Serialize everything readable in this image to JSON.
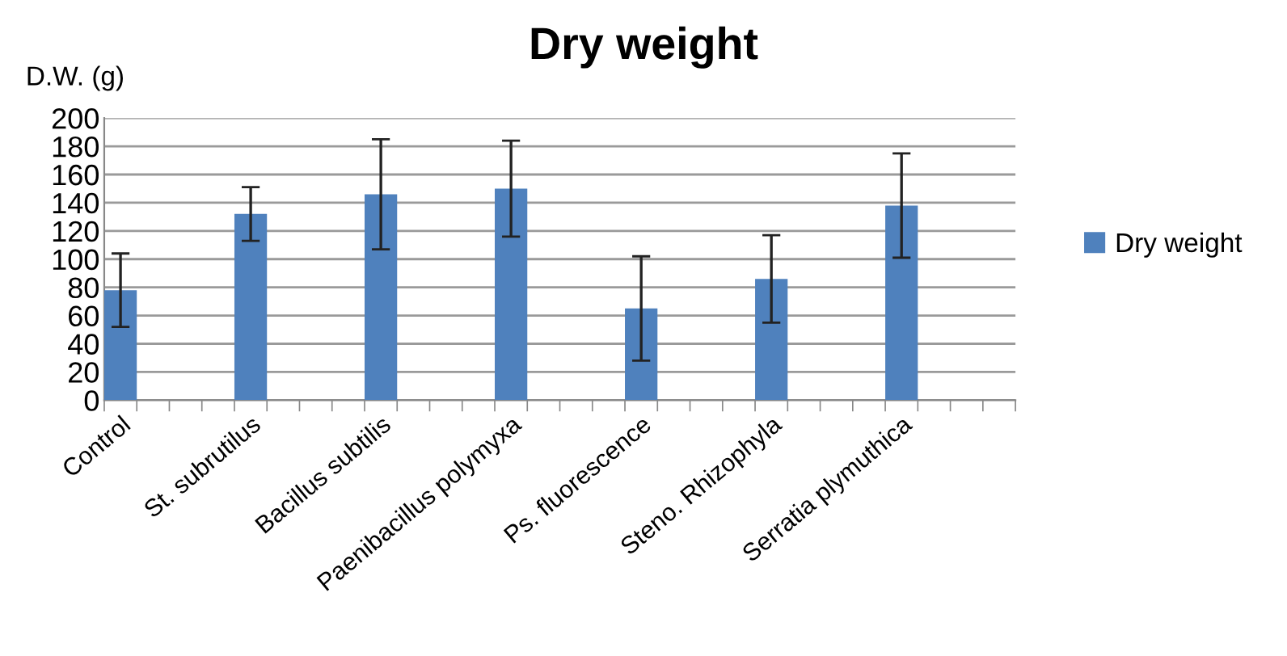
{
  "chart_data": {
    "type": "bar",
    "title": "Dry weight",
    "ylabel": "D.W. (g)",
    "categories": [
      "Control",
      null,
      null,
      null,
      "St. subrutilus",
      null,
      null,
      null,
      "Bacillus subtilis",
      null,
      null,
      null,
      "Paenibacillus polymyxa",
      null,
      null,
      null,
      "Ps. fluorescence",
      null,
      null,
      null,
      "Steno. Rhizophyla",
      null,
      null,
      null,
      "Serratia plymuthica",
      null,
      null,
      null
    ],
    "series": [
      {
        "name": "Dry weight",
        "color": "#4f81bd",
        "values": [
          78,
          null,
          null,
          null,
          132,
          null,
          null,
          null,
          146,
          null,
          null,
          null,
          150,
          null,
          null,
          null,
          65,
          null,
          null,
          null,
          86,
          null,
          null,
          null,
          138,
          null,
          null,
          null
        ],
        "errors": [
          26,
          null,
          null,
          null,
          19,
          null,
          null,
          null,
          39,
          null,
          null,
          null,
          34,
          null,
          null,
          null,
          37,
          null,
          null,
          null,
          31,
          null,
          null,
          null,
          37,
          null,
          null,
          null
        ]
      }
    ],
    "ylim": [
      0,
      200
    ],
    "yticks": [
      0,
      20,
      40,
      60,
      80,
      100,
      120,
      140,
      160,
      180,
      200
    ],
    "grid": "y",
    "legend": "right"
  }
}
